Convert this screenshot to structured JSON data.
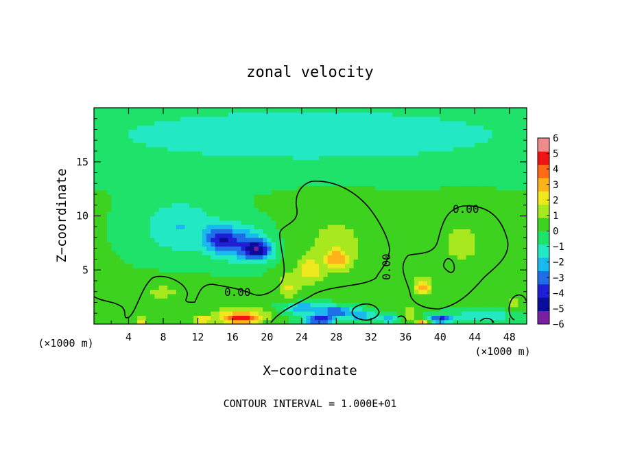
{
  "chart_data": {
    "type": "heatmap",
    "title": "zonal velocity",
    "xlabel": "X−coordinate",
    "ylabel": "Z−coordinate",
    "x_unit_left": "(×1000 m)",
    "x_unit_right": "(×1000 m)",
    "xlim": [
      0,
      50
    ],
    "ylim": [
      0,
      20
    ],
    "xticks": [
      4,
      8,
      12,
      16,
      20,
      24,
      28,
      32,
      36,
      40,
      44,
      48
    ],
    "yticks": [
      5,
      10,
      15
    ],
    "footer": "CONTOUR INTERVAL = 1.000E+01",
    "contour_labels": [
      {
        "text": "0.00",
        "x": 16.8,
        "y": 3.0
      },
      {
        "text": "0.00",
        "x": 34.0,
        "y": 5.2
      },
      {
        "text": "0.00",
        "x": 43.2,
        "y": 10.5
      }
    ],
    "colorbar": {
      "min": -6,
      "max": 6,
      "ticks": [
        "6",
        "5",
        "4",
        "3",
        "2",
        "1",
        "0",
        "−1",
        "−2",
        "−3",
        "−4",
        "−5",
        "−6"
      ],
      "colors": [
        "#7a1fa2",
        "#0b0b9a",
        "#1f1fd6",
        "#1f6ee8",
        "#19b9ee",
        "#22e8c4",
        "#1fe26a",
        "#3cd21f",
        "#a8e81f",
        "#f0e81f",
        "#ffb31a",
        "#ff6a14",
        "#ee1414",
        "#ee8c8c"
      ]
    },
    "features": [
      {
        "x": 25,
        "y": 17.5,
        "value": -1.6,
        "sx": 30,
        "sy": 3
      },
      {
        "x": 10,
        "y": 9.0,
        "value": -1.9,
        "sx": 4.5,
        "sy": 2.5
      },
      {
        "x": 17,
        "y": 7.5,
        "value": -3.2,
        "sx": 3.0,
        "sy": 1.6
      },
      {
        "x": 19,
        "y": 6.8,
        "value": -4.0,
        "sx": 1.6,
        "sy": 0.9
      },
      {
        "x": 14.5,
        "y": 7.8,
        "value": -2.6,
        "sx": 1.6,
        "sy": 1.2
      },
      {
        "x": 28,
        "y": 7.5,
        "value": 1.1,
        "sx": 5.0,
        "sy": 3.5
      },
      {
        "x": 28,
        "y": 6.0,
        "value": 2.8,
        "sx": 1.3,
        "sy": 0.9
      },
      {
        "x": 25,
        "y": 5.0,
        "value": 2.2,
        "sx": 1.3,
        "sy": 1.1
      },
      {
        "x": 22.5,
        "y": 3.5,
        "value": 1.8,
        "sx": 1.3,
        "sy": 1.2
      },
      {
        "x": 42.5,
        "y": 7.5,
        "value": 1.1,
        "sx": 3.5,
        "sy": 3.0
      },
      {
        "x": 38,
        "y": 3.5,
        "value": 3.2,
        "sx": 1.0,
        "sy": 0.8
      },
      {
        "x": 8,
        "y": 3.0,
        "value": 1.0,
        "sx": 4.0,
        "sy": 1.2
      },
      {
        "x": 2,
        "y": 2.0,
        "value": 0.8,
        "sx": 3.0,
        "sy": 0.8
      },
      {
        "x": 17,
        "y": 1.0,
        "value": 3.0,
        "sx": 3.0,
        "sy": 0.55
      },
      {
        "x": 17,
        "y": 0.4,
        "value": 4.6,
        "sx": 2.2,
        "sy": 0.35
      },
      {
        "x": 12.5,
        "y": 0.4,
        "value": 3.2,
        "sx": 1.3,
        "sy": 0.3
      },
      {
        "x": 5.5,
        "y": 0.3,
        "value": 3.0,
        "sx": 0.7,
        "sy": 0.3
      },
      {
        "x": 24,
        "y": 1.5,
        "value": -2.8,
        "sx": 2.2,
        "sy": 0.55
      },
      {
        "x": 28,
        "y": 1.2,
        "value": -3.3,
        "sx": 2.2,
        "sy": 0.55
      },
      {
        "x": 26,
        "y": 0.4,
        "value": -4.6,
        "sx": 1.8,
        "sy": 0.4
      },
      {
        "x": 31,
        "y": 0.8,
        "value": -2.6,
        "sx": 1.5,
        "sy": 0.45
      },
      {
        "x": 34,
        "y": 0.5,
        "value": -2.4,
        "sx": 1.0,
        "sy": 0.4
      },
      {
        "x": 40,
        "y": 0.5,
        "value": -4.0,
        "sx": 1.5,
        "sy": 0.35
      },
      {
        "x": 45,
        "y": 0.8,
        "value": -1.8,
        "sx": 3.5,
        "sy": 0.5
      },
      {
        "x": 38,
        "y": 0.3,
        "value": 4.0,
        "sx": 0.7,
        "sy": 0.25
      },
      {
        "x": 36.5,
        "y": 1.0,
        "value": 1.6,
        "sx": 0.8,
        "sy": 0.6
      },
      {
        "x": 48.5,
        "y": 2.0,
        "value": 1.3,
        "sx": 0.8,
        "sy": 0.8
      }
    ]
  }
}
